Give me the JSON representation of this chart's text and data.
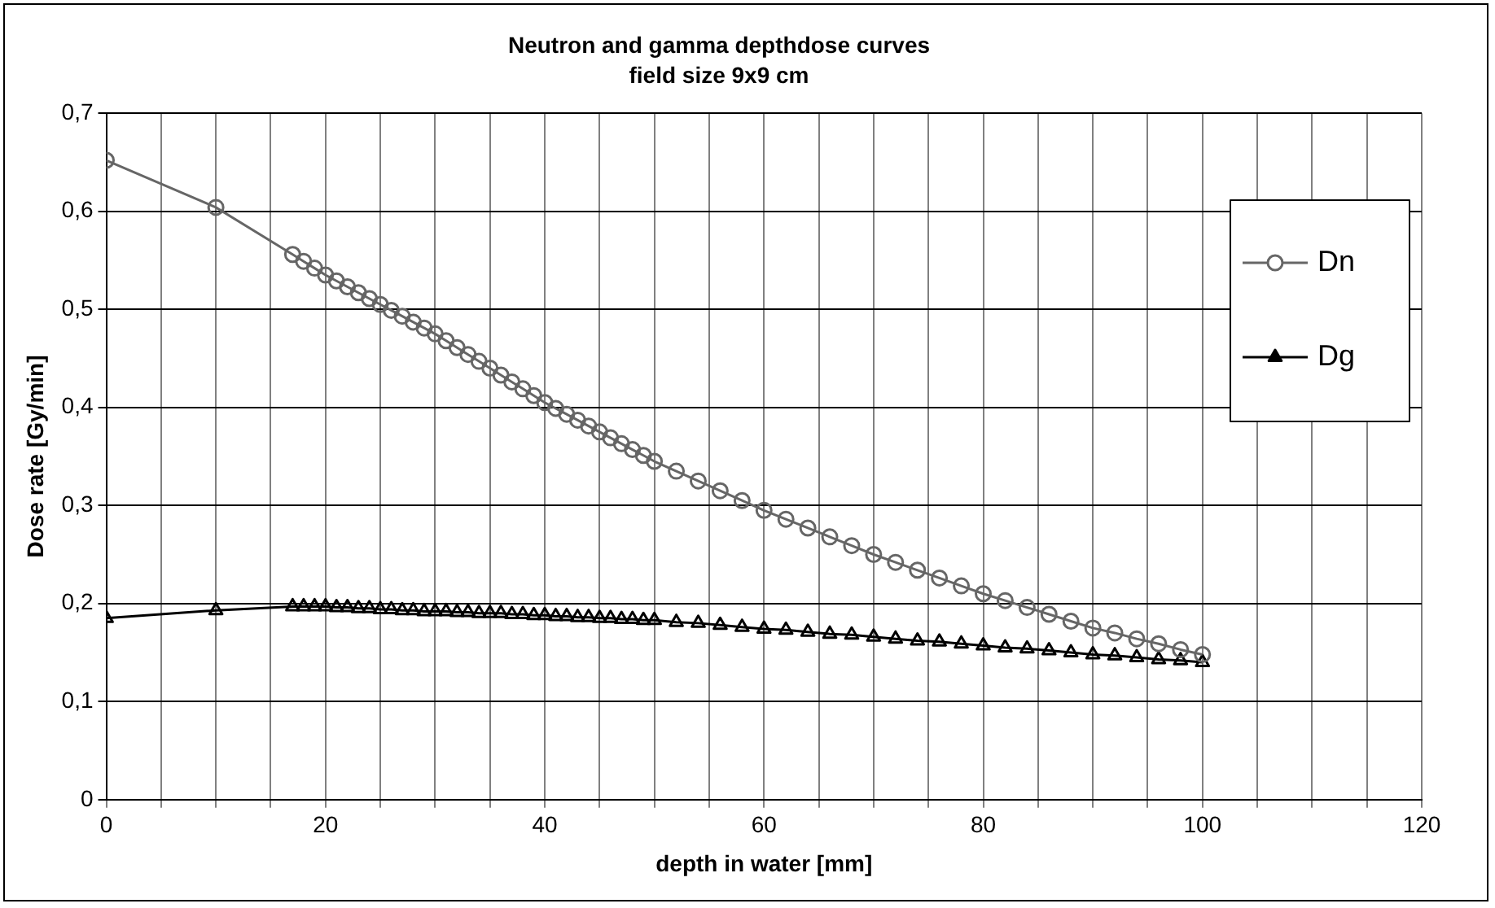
{
  "chart_data": {
    "type": "line",
    "title": "Neutron and gamma depthdose curves",
    "subtitle": "field size 9x9 cm",
    "xlabel": "depth in water [mm]",
    "ylabel": "Dose rate [Gy/min]",
    "x": [
      0,
      10,
      17,
      18,
      19,
      20,
      21,
      22,
      23,
      24,
      25,
      26,
      27,
      28,
      29,
      30,
      31,
      32,
      33,
      34,
      35,
      36,
      37,
      38,
      39,
      40,
      41,
      42,
      43,
      44,
      45,
      46,
      47,
      48,
      49,
      50,
      52,
      54,
      56,
      58,
      60,
      62,
      64,
      66,
      68,
      70,
      72,
      74,
      76,
      78,
      80,
      82,
      84,
      86,
      88,
      90,
      92,
      94,
      96,
      98,
      100
    ],
    "series": [
      {
        "name": "Dn",
        "color": "#666666",
        "marker": "circle",
        "values": [
          0.652,
          0.604,
          0.556,
          0.549,
          0.542,
          0.535,
          0.529,
          0.523,
          0.517,
          0.511,
          0.505,
          0.499,
          0.493,
          0.487,
          0.481,
          0.475,
          0.468,
          0.461,
          0.454,
          0.447,
          0.44,
          0.433,
          0.426,
          0.419,
          0.412,
          0.405,
          0.399,
          0.393,
          0.387,
          0.381,
          0.375,
          0.369,
          0.363,
          0.357,
          0.351,
          0.345,
          0.335,
          0.325,
          0.315,
          0.305,
          0.295,
          0.286,
          0.277,
          0.268,
          0.259,
          0.25,
          0.242,
          0.234,
          0.226,
          0.218,
          0.21,
          0.203,
          0.196,
          0.189,
          0.182,
          0.175,
          0.17,
          0.164,
          0.159,
          0.153,
          0.148
        ]
      },
      {
        "name": "Dg",
        "color": "#000000",
        "marker": "triangle",
        "values": [
          0.185,
          0.193,
          0.197,
          0.197,
          0.197,
          0.197,
          0.196,
          0.196,
          0.195,
          0.195,
          0.194,
          0.194,
          0.193,
          0.193,
          0.192,
          0.192,
          0.192,
          0.191,
          0.191,
          0.19,
          0.19,
          0.19,
          0.189,
          0.189,
          0.188,
          0.188,
          0.187,
          0.187,
          0.186,
          0.186,
          0.185,
          0.185,
          0.184,
          0.184,
          0.183,
          0.183,
          0.181,
          0.18,
          0.178,
          0.176,
          0.174,
          0.173,
          0.171,
          0.169,
          0.168,
          0.166,
          0.164,
          0.162,
          0.161,
          0.159,
          0.157,
          0.155,
          0.154,
          0.152,
          0.15,
          0.148,
          0.147,
          0.145,
          0.143,
          0.142,
          0.14
        ]
      }
    ],
    "xlim": [
      0,
      120
    ],
    "xticks": [
      0,
      {
        "value": 5,
        "label": null
      },
      {
        "value": 10,
        "label": null
      },
      {
        "value": 15,
        "label": null
      },
      20,
      {
        "value": 25,
        "label": null
      },
      {
        "value": 30,
        "label": null
      },
      {
        "value": 35,
        "label": null
      },
      40,
      {
        "value": 45,
        "label": null
      },
      {
        "value": 50,
        "label": null
      },
      {
        "value": 55,
        "label": null
      },
      60,
      {
        "value": 65,
        "label": null
      },
      {
        "value": 70,
        "label": null
      },
      {
        "value": 75,
        "label": null
      },
      80,
      {
        "value": 85,
        "label": null
      },
      {
        "value": 90,
        "label": null
      },
      {
        "value": 95,
        "label": null
      },
      100,
      {
        "value": 105,
        "label": null
      },
      {
        "value": 110,
        "label": null
      },
      {
        "value": 115,
        "label": null
      },
      120
    ],
    "ylim": [
      0,
      0.7
    ],
    "yticks": [
      0,
      {
        "value": 0.1,
        "label": "0,1"
      },
      {
        "value": 0.2,
        "label": "0,2"
      },
      {
        "value": 0.3,
        "label": "0,3"
      },
      {
        "value": 0.4,
        "label": "0,4"
      },
      {
        "value": 0.5,
        "label": "0,5"
      },
      {
        "value": 0.6,
        "label": "0,6"
      },
      {
        "value": 0.7,
        "label": "0,7"
      }
    ],
    "grid": true,
    "legend": "right"
  }
}
